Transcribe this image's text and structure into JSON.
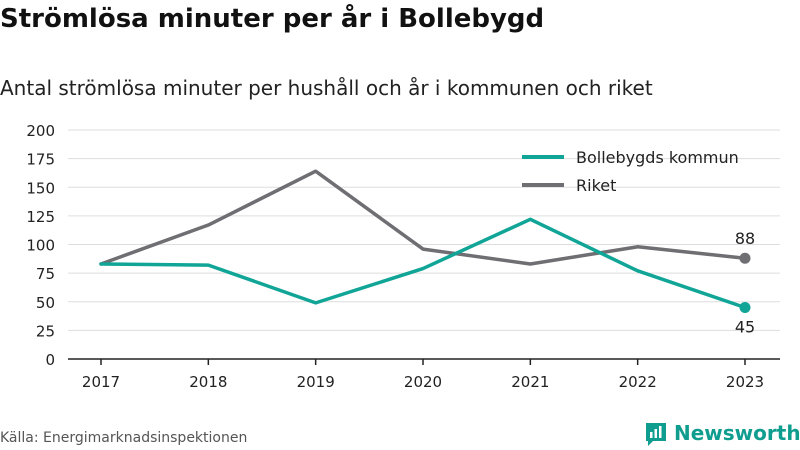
{
  "title": "Strömlösa minuter per år i Bollebygd",
  "subtitle": "Antal strömlösa minuter per hushåll och år i kommunen och riket",
  "source": "Källa: Energimarknadsinspektionen",
  "logo": {
    "text": "Newsworthy",
    "icon": "newsworthy-logo-icon"
  },
  "colors": {
    "kommun": "#10a596",
    "riket": "#6e6e73",
    "grid": "#dddddd",
    "axis": "#222222"
  },
  "chart_data": {
    "type": "line",
    "x": [
      "2017",
      "2018",
      "2019",
      "2020",
      "2021",
      "2022",
      "2023"
    ],
    "yticks": [
      "0",
      "25",
      "50",
      "75",
      "100",
      "125",
      "150",
      "175",
      "200"
    ],
    "ylim": [
      0,
      200
    ],
    "grid": true,
    "legend_position": "top-right",
    "series": [
      {
        "name": "Bollebygds kommun",
        "values": [
          83,
          82,
          49,
          79,
          122,
          77,
          45
        ],
        "end_label": "45"
      },
      {
        "name": "Riket",
        "values": [
          83,
          117,
          164,
          96,
          83,
          98,
          88
        ],
        "end_label": "88"
      }
    ]
  }
}
